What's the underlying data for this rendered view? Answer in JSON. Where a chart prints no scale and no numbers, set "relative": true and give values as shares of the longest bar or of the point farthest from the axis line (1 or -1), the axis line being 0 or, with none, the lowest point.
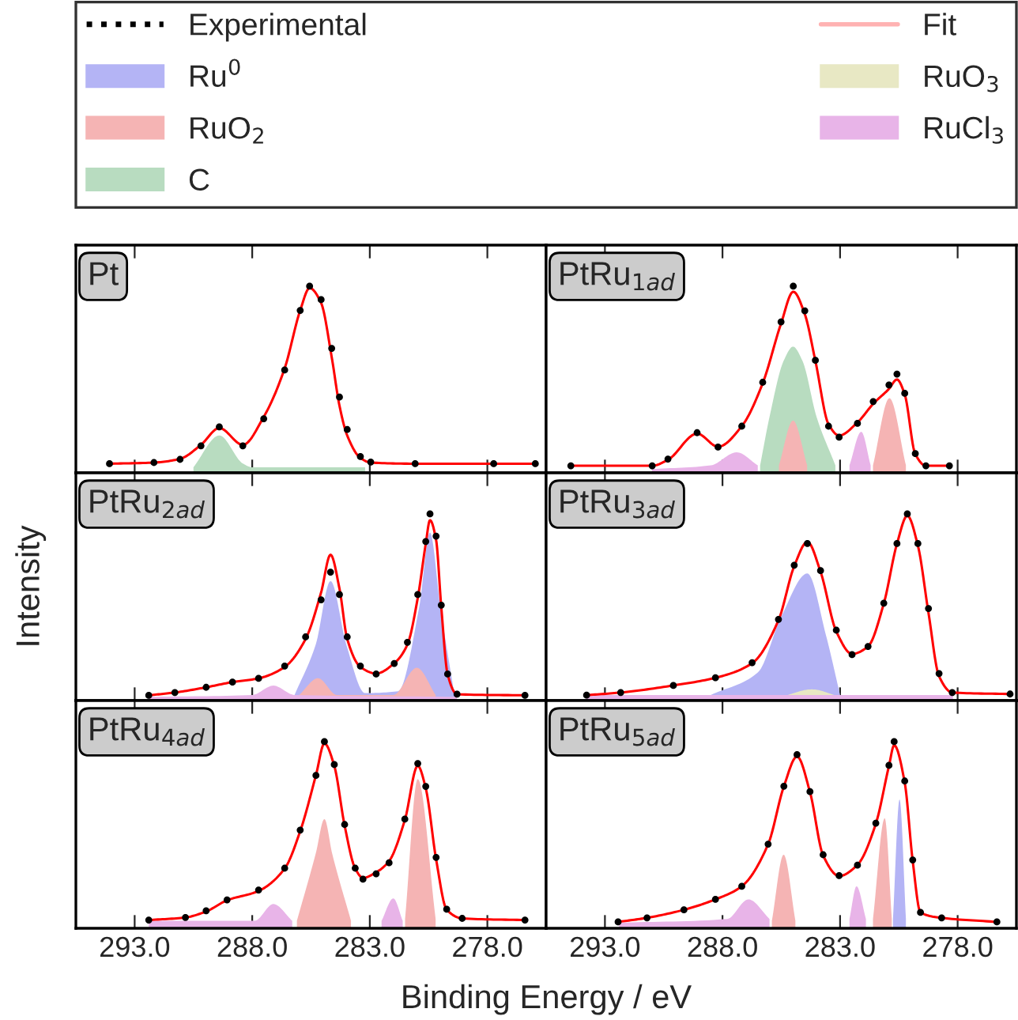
{
  "chart_data": [
    {
      "type": "line",
      "title": "Pt",
      "relative": true,
      "legend": "top",
      "xlim": [
        295.5,
        275.5
      ],
      "xticks": [
        {
          "value": 293,
          "label": "293.0"
        },
        {
          "value": 288,
          "label": "288.0"
        },
        {
          "value": 283,
          "label": "283.0"
        },
        {
          "value": 278,
          "label": "278.0"
        }
      ],
      "tick_labels": false,
      "series": [
        {
          "name": "Experimental",
          "type": "scatter",
          "color": "#000000",
          "marker": "circle",
          "x": [
            294.07,
            292.18,
            291.07,
            290.18,
            289.4,
            288.4,
            287.51,
            286.62,
            285.96,
            285.56,
            285.07,
            284.62,
            284.29,
            283.96,
            283.4,
            282.96,
            281.07,
            277.73,
            275.96
          ],
          "values": [
            0.049,
            0.055,
            0.072,
            0.145,
            0.246,
            0.145,
            0.29,
            0.551,
            0.87,
            1.0,
            0.928,
            0.667,
            0.406,
            0.232,
            0.087,
            0.058,
            0.049,
            0.049,
            0.049
          ]
        },
        {
          "name": "C",
          "type": "area",
          "color": "#b8dcc0",
          "x": [
            290.5,
            289.4,
            288.4,
            288.0,
            283.2
          ],
          "values": [
            0.03,
            0.2,
            0.05,
            0.03,
            0.03
          ]
        },
        {
          "name": "Fit",
          "type": "line",
          "color": "#ff0000",
          "line_style": "solid",
          "x": [
            294.07,
            292.18,
            291.07,
            290.18,
            289.4,
            288.4,
            287.51,
            286.62,
            285.96,
            285.56,
            285.07,
            284.62,
            284.29,
            283.96,
            283.4,
            282.96,
            281.07,
            277.73,
            275.96
          ],
          "values": [
            0.049,
            0.055,
            0.075,
            0.15,
            0.24,
            0.15,
            0.3,
            0.56,
            0.87,
            0.99,
            0.91,
            0.62,
            0.36,
            0.2,
            0.08,
            0.055,
            0.049,
            0.049,
            0.049
          ]
        }
      ]
    },
    {
      "type": "line",
      "title": "PtRu$_{1ad}$",
      "relative": true,
      "legend": "top",
      "xlim": [
        295.5,
        275.5
      ],
      "xticks": [
        {
          "value": 293,
          "label": "293.0"
        },
        {
          "value": 288,
          "label": "288.0"
        },
        {
          "value": 283,
          "label": "283.0"
        },
        {
          "value": 278,
          "label": "278.0"
        }
      ],
      "tick_labels": false,
      "series": [
        {
          "name": "Experimental",
          "type": "scatter",
          "color": "#000000",
          "marker": "circle",
          "x": [
            294.45,
            290.99,
            290.32,
            289.08,
            288.19,
            287.18,
            286.29,
            285.51,
            284.99,
            284.5,
            284.05,
            283.49,
            283.04,
            282.26,
            281.59,
            280.92,
            280.58,
            280.25,
            279.8,
            279.35,
            278.35
          ],
          "values": [
            0.038,
            0.038,
            0.074,
            0.215,
            0.138,
            0.25,
            0.485,
            0.809,
            1.0,
            0.868,
            0.603,
            0.25,
            0.191,
            0.265,
            0.382,
            0.471,
            0.529,
            0.426,
            0.103,
            0.038,
            0.038
          ]
        },
        {
          "name": "RuO$_{2}$",
          "type": "area",
          "color": "#f5b4b4",
          "x": [
            285.6,
            285.0,
            284.4,
            283.0,
            281.6,
            280.9,
            280.2
          ],
          "values": [
            0.04,
            0.28,
            0.04,
            null,
            0.04,
            0.4,
            0.04
          ]
        },
        {
          "name": "C",
          "type": "area",
          "color": "#b8dcc0",
          "x": [
            286.4,
            286.0,
            285.4,
            285.0,
            284.6,
            284.0,
            283.2
          ],
          "values": [
            0.04,
            0.3,
            0.6,
            0.676,
            0.6,
            0.3,
            0.04
          ]
        },
        {
          "name": "Fit",
          "type": "line",
          "color": "#ff0000",
          "line_style": "solid",
          "x": [
            294.45,
            290.99,
            290.32,
            289.08,
            288.19,
            287.18,
            286.29,
            285.51,
            284.99,
            284.5,
            284.05,
            283.49,
            283.04,
            282.26,
            281.59,
            280.92,
            280.58,
            280.25,
            279.8,
            279.35,
            278.35
          ],
          "values": [
            0.038,
            0.038,
            0.07,
            0.21,
            0.14,
            0.25,
            0.48,
            0.8,
            0.97,
            0.85,
            0.6,
            0.26,
            0.2,
            0.27,
            0.37,
            0.45,
            0.5,
            0.42,
            0.1,
            0.038,
            0.038
          ]
        },
        {
          "name": "RuCl$_{3}$",
          "type": "area",
          "color": "#e8b4e8",
          "x": [
            291.0,
            288.5,
            287.4,
            286.5,
            284.0,
            282.6,
            282.1,
            281.7
          ],
          "values": [
            0.02,
            0.04,
            0.11,
            0.04,
            null,
            0.04,
            0.22,
            0.04
          ]
        }
      ]
    },
    {
      "type": "line",
      "title": "PtRu$_{2ad}$",
      "relative": true,
      "legend": "top",
      "ylabel": "Intensity",
      "xlim": [
        295.5,
        275.5
      ],
      "xticks": [
        {
          "value": 293,
          "label": "293.0"
        },
        {
          "value": 288,
          "label": "288.0"
        },
        {
          "value": 283,
          "label": "283.0"
        },
        {
          "value": 278,
          "label": "278.0"
        }
      ],
      "tick_labels": false,
      "series": [
        {
          "name": "Experimental",
          "type": "scatter",
          "color": "#000000",
          "marker": "circle",
          "x": [
            292.4,
            291.29,
            289.96,
            288.84,
            287.73,
            286.62,
            285.73,
            285.07,
            284.67,
            284.29,
            283.96,
            283.4,
            282.73,
            281.96,
            281.4,
            280.96,
            280.62,
            280.44,
            280.18,
            279.96,
            279.69,
            279.29,
            276.4
          ],
          "values": [
            0.028,
            0.043,
            0.071,
            0.099,
            0.119,
            0.185,
            0.341,
            0.54,
            0.688,
            0.568,
            0.341,
            0.185,
            0.142,
            0.199,
            0.312,
            0.568,
            0.852,
            1.0,
            0.881,
            0.511,
            0.142,
            0.034,
            0.028
          ]
        },
        {
          "name": "Ru$^{0}$",
          "type": "area",
          "color": "#b4b4f5",
          "x": [
            286.2,
            285.3,
            284.67,
            284.0,
            283.2,
            281.8,
            280.9,
            280.44,
            280.0,
            279.4
          ],
          "values": [
            0.03,
            0.3,
            0.64,
            0.3,
            0.04,
            0.05,
            0.5,
            0.9,
            0.5,
            0.03
          ]
        },
        {
          "name": "RuO$_{2}$",
          "type": "area",
          "color": "#f5b4b4",
          "x": [
            286.0,
            285.2,
            284.4,
            282.0,
            281.0,
            280.2
          ],
          "values": [
            0.03,
            0.12,
            0.03,
            0.03,
            0.176,
            0.03
          ]
        },
        {
          "name": "Fit",
          "type": "line",
          "color": "#ff0000",
          "line_style": "solid",
          "x": [
            292.4,
            291.29,
            289.96,
            288.84,
            287.73,
            286.62,
            285.73,
            285.07,
            284.67,
            284.29,
            283.96,
            283.4,
            282.73,
            281.96,
            281.4,
            280.96,
            280.62,
            280.44,
            280.18,
            279.96,
            279.69,
            279.29,
            276.4
          ],
          "values": [
            0.028,
            0.043,
            0.071,
            0.099,
            0.119,
            0.18,
            0.33,
            0.58,
            0.781,
            0.6,
            0.33,
            0.18,
            0.145,
            0.2,
            0.3,
            0.55,
            0.84,
            0.966,
            0.86,
            0.5,
            0.14,
            0.034,
            0.028
          ]
        },
        {
          "name": "RuCl$_{3}$",
          "type": "area",
          "color": "#e8b4e8",
          "x": [
            292.4,
            288.0,
            287.1,
            286.2,
            279.3
          ],
          "values": [
            0.02,
            0.03,
            0.08,
            0.03,
            0.02
          ]
        }
      ]
    },
    {
      "type": "line",
      "title": "PtRu$_{3ad}$",
      "relative": true,
      "legend": "top",
      "xlim": [
        295.5,
        275.5
      ],
      "xticks": [
        {
          "value": 293,
          "label": "293.0"
        },
        {
          "value": 288,
          "label": "288.0"
        },
        {
          "value": 283,
          "label": "283.0"
        },
        {
          "value": 278,
          "label": "278.0"
        }
      ],
      "tick_labels": false,
      "series": [
        {
          "name": "Experimental",
          "type": "scatter",
          "color": "#000000",
          "marker": "circle",
          "x": [
            293.78,
            292.33,
            290.09,
            288.3,
            286.74,
            285.62,
            284.95,
            284.39,
            283.83,
            283.16,
            282.49,
            281.81,
            281.14,
            280.58,
            280.14,
            279.69,
            279.24,
            278.79,
            278.23,
            275.77
          ],
          "values": [
            0.029,
            0.043,
            0.081,
            0.122,
            0.203,
            0.435,
            0.725,
            0.841,
            0.696,
            0.377,
            0.246,
            0.29,
            0.522,
            0.841,
            1.0,
            0.841,
            0.493,
            0.145,
            0.043,
            0.035
          ]
        },
        {
          "name": "Ru$^{0}$",
          "type": "area",
          "color": "#b4b4f5",
          "x": [
            288.5,
            286.5,
            285.5,
            284.39,
            283.6,
            283.0
          ],
          "values": [
            0.03,
            0.15,
            0.45,
            0.681,
            0.35,
            0.03
          ]
        },
        {
          "name": "Fit",
          "type": "line",
          "color": "#ff0000",
          "line_style": "solid",
          "x": [
            293.78,
            292.33,
            290.09,
            288.3,
            286.74,
            285.62,
            284.95,
            284.39,
            283.83,
            283.16,
            282.49,
            281.81,
            281.14,
            280.58,
            280.14,
            279.69,
            279.24,
            278.79,
            278.23,
            275.77
          ],
          "values": [
            0.029,
            0.043,
            0.081,
            0.122,
            0.2,
            0.43,
            0.72,
            0.85,
            0.69,
            0.37,
            0.25,
            0.29,
            0.52,
            0.84,
            0.99,
            0.83,
            0.47,
            0.13,
            0.043,
            0.035
          ]
        },
        {
          "name": "RuO$_{3}$",
          "type": "area",
          "color": "#e8e8c4",
          "x": [
            285.5,
            284.2,
            283.0
          ],
          "values": [
            0.02,
            0.06,
            0.02
          ]
        },
        {
          "name": "RuCl$_{3}$",
          "type": "area",
          "color": "#e8b4e8",
          "x": [
            293.8,
            278.2
          ],
          "values": [
            0.03,
            0.03
          ]
        }
      ]
    },
    {
      "type": "line",
      "title": "PtRu$_{4ad}$",
      "relative": true,
      "legend": "top",
      "xlabel": "Binding Energy / eV",
      "xlim": [
        295.5,
        275.5
      ],
      "xticks": [
        {
          "value": 293,
          "label": "293.0"
        },
        {
          "value": 288,
          "label": "288.0"
        },
        {
          "value": 283,
          "label": "283.0"
        },
        {
          "value": 278,
          "label": "278.0"
        }
      ],
      "tick_labels": "x",
      "series": [
        {
          "name": "Experimental",
          "type": "scatter",
          "color": "#000000",
          "marker": "circle",
          "x": [
            292.4,
            290.84,
            289.96,
            289.07,
            287.73,
            286.62,
            285.96,
            285.29,
            284.93,
            284.51,
            284.07,
            283.62,
            283.29,
            282.73,
            282.18,
            281.51,
            280.96,
            280.62,
            280.18,
            279.73,
            279.07,
            276.4
          ],
          "values": [
            0.044,
            0.058,
            0.094,
            0.152,
            0.205,
            0.322,
            0.526,
            0.819,
            1.0,
            0.877,
            0.556,
            0.322,
            0.263,
            0.292,
            0.351,
            0.585,
            0.883,
            0.76,
            0.38,
            0.102,
            0.053,
            0.044
          ]
        },
        {
          "name": "RuO$_{2}$",
          "type": "area",
          "color": "#f5b4b4",
          "x": [
            286.1,
            285.3,
            284.93,
            284.6,
            283.8,
            282.6,
            281.5,
            280.96,
            280.2
          ],
          "values": [
            0.04,
            0.4,
            0.585,
            0.4,
            0.04,
            null,
            0.05,
            0.8,
            0.05
          ]
        },
        {
          "name": "Fit",
          "type": "line",
          "color": "#ff0000",
          "line_style": "solid",
          "x": [
            292.4,
            290.84,
            289.96,
            289.07,
            287.73,
            286.62,
            285.96,
            285.29,
            284.93,
            284.51,
            284.07,
            283.62,
            283.29,
            282.73,
            282.18,
            281.51,
            280.96,
            280.62,
            280.18,
            279.73,
            279.07,
            276.4
          ],
          "values": [
            0.044,
            0.058,
            0.09,
            0.15,
            0.2,
            0.32,
            0.52,
            0.82,
            0.99,
            0.87,
            0.55,
            0.32,
            0.27,
            0.3,
            0.36,
            0.58,
            0.87,
            0.75,
            0.37,
            0.1,
            0.053,
            0.044
          ]
        },
        {
          "name": "RuCl$_{3}$",
          "type": "area",
          "color": "#e8b4e8",
          "x": [
            292.4,
            287.9,
            287.1,
            286.3,
            284.0,
            282.5,
            282.0,
            281.6
          ],
          "values": [
            0.04,
            0.04,
            0.13,
            0.04,
            null,
            0.04,
            0.16,
            0.04
          ]
        }
      ]
    },
    {
      "type": "line",
      "title": "PtRu$_{5ad}$",
      "relative": true,
      "legend": "top",
      "xlim": [
        295.5,
        275.5
      ],
      "xticks": [
        {
          "value": 293,
          "label": "293.0"
        },
        {
          "value": 288,
          "label": "288.0"
        },
        {
          "value": 283,
          "label": "283.0"
        },
        {
          "value": 278,
          "label": "278.0"
        }
      ],
      "tick_labels": "x",
      "series": [
        {
          "name": "Experimental",
          "type": "scatter",
          "color": "#000000",
          "marker": "circle",
          "x": [
            292.44,
            291.21,
            289.64,
            288.3,
            287.18,
            286.06,
            285.39,
            284.83,
            284.28,
            283.72,
            283.04,
            282.26,
            281.48,
            280.92,
            280.7,
            280.25,
            279.91,
            279.58,
            278.68,
            276.33
          ],
          "values": [
            0.034,
            0.056,
            0.099,
            0.155,
            0.225,
            0.451,
            0.761,
            0.93,
            0.732,
            0.394,
            0.282,
            0.338,
            0.563,
            0.873,
            1.0,
            0.789,
            0.366,
            0.085,
            0.056,
            0.034
          ]
        },
        {
          "name": "Ru$^{0}$",
          "type": "area",
          "color": "#b4b4f5",
          "x": [
            280.75,
            280.47,
            280.2
          ],
          "values": [
            0.05,
            0.69,
            0.05
          ]
        },
        {
          "name": "RuO$_{2}$",
          "type": "area",
          "color": "#f5b4b4",
          "x": [
            285.9,
            285.4,
            284.9,
            283.0,
            281.6,
            281.1,
            280.8
          ],
          "values": [
            0.04,
            0.394,
            0.04,
            null,
            0.05,
            0.59,
            0.05
          ]
        },
        {
          "name": "Fit",
          "type": "line",
          "color": "#ff0000",
          "line_style": "solid",
          "x": [
            292.44,
            291.21,
            289.64,
            288.3,
            287.18,
            286.06,
            285.39,
            284.83,
            284.28,
            283.72,
            283.04,
            282.26,
            281.48,
            280.92,
            280.7,
            280.25,
            279.91,
            279.58,
            278.68,
            276.33
          ],
          "values": [
            0.034,
            0.056,
            0.099,
            0.155,
            0.225,
            0.45,
            0.76,
            0.92,
            0.73,
            0.39,
            0.28,
            0.34,
            0.56,
            0.87,
            0.98,
            0.78,
            0.36,
            0.085,
            0.056,
            0.034
          ]
        },
        {
          "name": "RuCl$_{3}$",
          "type": "area",
          "color": "#e8b4e8",
          "x": [
            292.4,
            287.8,
            286.9,
            286.0,
            284.0,
            282.6,
            282.3,
            281.9
          ],
          "values": [
            0.03,
            0.05,
            0.155,
            0.05,
            null,
            0.05,
            0.225,
            0.05
          ]
        }
      ]
    }
  ]
}
